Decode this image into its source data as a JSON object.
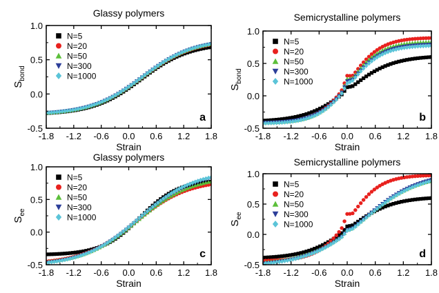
{
  "chart_data": [
    {
      "type": "scatter",
      "panel_label": "a",
      "title": "Glassy polymers",
      "xlabel": "Strain",
      "ylabel": {
        "base": "S",
        "sub": "bond"
      },
      "xlim": [
        -1.8,
        1.8
      ],
      "ylim": [
        -0.5,
        1.0
      ],
      "xticks": [
        "-1.8",
        "-1.2",
        "-0.6",
        "0.0",
        "0.6",
        "1.2",
        "1.8"
      ],
      "yticks": [
        "-0.5",
        "0.0",
        "0.5",
        "1.0"
      ],
      "legend_position": "top-left",
      "series": [
        {
          "name": "N=5",
          "marker": "square",
          "color": "#000000",
          "curve": {
            "lo": -0.3,
            "hi": 0.74,
            "mid": 0.28,
            "k": 1.9
          }
        },
        {
          "name": "N=20",
          "marker": "circle",
          "color": "#e8211e",
          "curve": {
            "lo": -0.3,
            "hi": 0.79,
            "mid": 0.3,
            "k": 1.8
          }
        },
        {
          "name": "N=50",
          "marker": "triangle-up",
          "color": "#5cbf3a",
          "curve": {
            "lo": -0.3,
            "hi": 0.8,
            "mid": 0.3,
            "k": 1.8
          }
        },
        {
          "name": "N=300",
          "marker": "triangle-down",
          "color": "#2c3e99",
          "curve": {
            "lo": -0.3,
            "hi": 0.8,
            "mid": 0.3,
            "k": 1.8
          }
        },
        {
          "name": "N=1000",
          "marker": "diamond",
          "color": "#5bc4d8",
          "curve": {
            "lo": -0.3,
            "hi": 0.8,
            "mid": 0.3,
            "k": 1.8
          }
        }
      ]
    },
    {
      "type": "scatter",
      "panel_label": "b",
      "title": "Semicrystalline polymers",
      "xlabel": "Strain",
      "ylabel": {
        "base": "S",
        "sub": "bond"
      },
      "xlim": [
        -1.8,
        1.8
      ],
      "ylim": [
        -0.5,
        1.0
      ],
      "xticks": [
        "-1.8",
        "-1.2",
        "-0.6",
        "0.0",
        "0.6",
        "1.2",
        "1.8"
      ],
      "yticks": [
        "-0.5",
        "0.0",
        "0.5",
        "1.0"
      ],
      "legend_position": "top-left",
      "series": [
        {
          "name": "N=5",
          "marker": "square",
          "color": "#000000",
          "curve": {
            "lo": -0.4,
            "hi": 0.62,
            "mid": 0.05,
            "k": 2.2
          },
          "cusp": 0.05
        },
        {
          "name": "N=20",
          "marker": "circle",
          "color": "#e8211e",
          "curve": {
            "lo": -0.42,
            "hi": 0.9,
            "mid": 0.05,
            "k": 3.0
          },
          "cusp": 0.12
        },
        {
          "name": "N=50",
          "marker": "triangle-up",
          "color": "#5cbf3a",
          "curve": {
            "lo": -0.42,
            "hi": 0.84,
            "mid": 0.05,
            "k": 3.0
          },
          "cusp": 0.1
        },
        {
          "name": "N=300",
          "marker": "triangle-down",
          "color": "#2c3e99",
          "curve": {
            "lo": -0.42,
            "hi": 0.8,
            "mid": 0.05,
            "k": 2.9
          },
          "cusp": 0.08
        },
        {
          "name": "N=1000",
          "marker": "diamond",
          "color": "#5bc4d8",
          "curve": {
            "lo": -0.43,
            "hi": 0.78,
            "mid": 0.05,
            "k": 2.9
          },
          "cusp": 0.06
        }
      ]
    },
    {
      "type": "scatter",
      "panel_label": "c",
      "title": "Glassy polymers",
      "xlabel": "Strain",
      "ylabel": {
        "base": "S",
        "sub": "ee"
      },
      "xlim": [
        -1.8,
        1.8
      ],
      "ylim": [
        -0.5,
        1.0
      ],
      "xticks": [
        "-1.8",
        "-1.2",
        "-0.6",
        "0.0",
        "0.6",
        "1.2",
        "1.8"
      ],
      "yticks": [
        "-0.5",
        "0.0",
        "0.5",
        "1.0"
      ],
      "legend_position": "top-left",
      "series": [
        {
          "name": "N=5",
          "marker": "square",
          "color": "#000000",
          "curve": {
            "lo": -0.35,
            "hi": 0.8,
            "mid": 0.25,
            "k": 2.4
          }
        },
        {
          "name": "N=20",
          "marker": "circle",
          "color": "#e8211e",
          "curve": {
            "lo": -0.49,
            "hi": 0.8,
            "mid": 0.15,
            "k": 1.75
          }
        },
        {
          "name": "N=50",
          "marker": "triangle-up",
          "color": "#5cbf3a",
          "curve": {
            "lo": -0.5,
            "hi": 0.86,
            "mid": 0.2,
            "k": 1.7
          }
        },
        {
          "name": "N=300",
          "marker": "triangle-down",
          "color": "#2c3e99",
          "curve": {
            "lo": -0.52,
            "hi": 0.92,
            "mid": 0.22,
            "k": 1.65
          }
        },
        {
          "name": "N=1000",
          "marker": "diamond",
          "color": "#5bc4d8",
          "curve": {
            "lo": -0.52,
            "hi": 0.94,
            "mid": 0.22,
            "k": 1.65
          }
        }
      ]
    },
    {
      "type": "scatter",
      "panel_label": "d",
      "title": "Semicrystalline polymers",
      "xlabel": "Strain",
      "ylabel": {
        "base": "S",
        "sub": "ee"
      },
      "xlim": [
        -1.8,
        1.8
      ],
      "ylim": [
        -0.5,
        1.0
      ],
      "xticks": [
        "-1.8",
        "-1.2",
        "-0.6",
        "0.0",
        "0.6",
        "1.2",
        "1.8"
      ],
      "yticks": [
        "-0.5",
        "0.0",
        "0.5",
        "1.0"
      ],
      "legend_position": "top-left",
      "series": [
        {
          "name": "N=5",
          "marker": "square",
          "color": "#000000",
          "curve": {
            "lo": -0.4,
            "hi": 0.62,
            "mid": 0.05,
            "k": 2.2
          },
          "cusp": 0.05
        },
        {
          "name": "N=20",
          "marker": "circle",
          "color": "#e8211e",
          "curve": {
            "lo": -0.44,
            "hi": 0.98,
            "mid": 0.05,
            "k": 3.0
          },
          "cusp": 0.12
        },
        {
          "name": "N=50",
          "marker": "triangle-up",
          "color": "#5cbf3a",
          "curve": {
            "lo": -0.5,
            "hi": 1.0,
            "mid": 0.35,
            "k": 1.7
          },
          "cusp": 0.04
        },
        {
          "name": "N=300",
          "marker": "triangle-down",
          "color": "#2c3e99",
          "curve": {
            "lo": -0.52,
            "hi": 1.02,
            "mid": 0.35,
            "k": 1.7
          },
          "cusp": 0.04
        },
        {
          "name": "N=1000",
          "marker": "diamond",
          "color": "#5bc4d8",
          "curve": {
            "lo": -0.52,
            "hi": 1.0,
            "mid": 0.35,
            "k": 1.7
          },
          "cusp": 0.04
        }
      ]
    }
  ]
}
